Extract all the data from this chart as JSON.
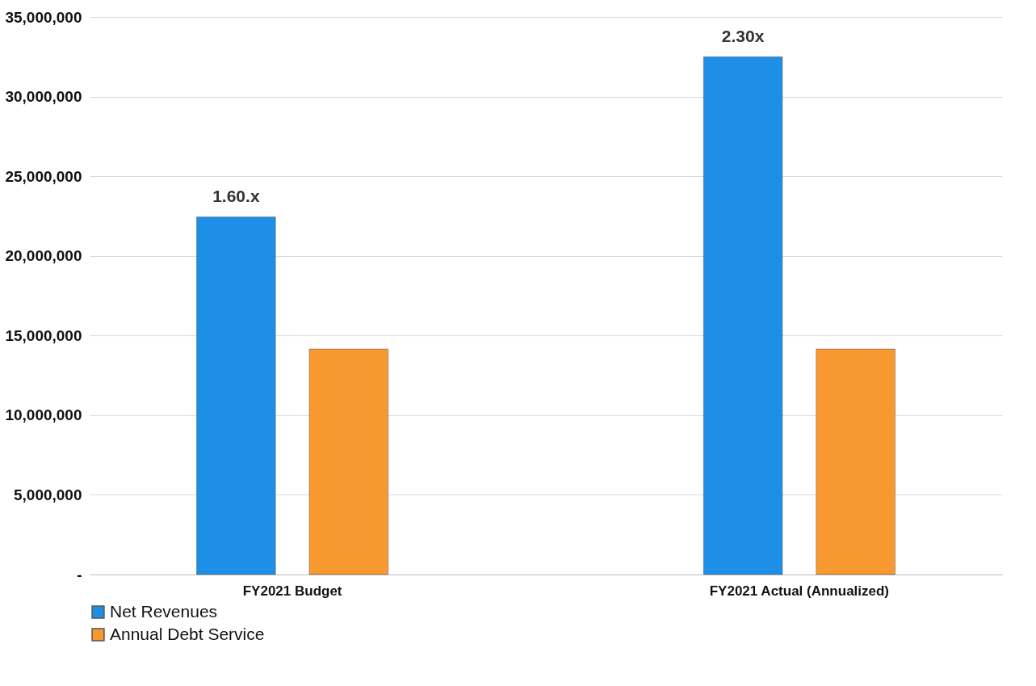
{
  "chart_data": {
    "type": "bar",
    "categories": [
      "FY2021 Budget",
      "FY2021 Actual (Annualized)"
    ],
    "series": [
      {
        "name": "Net Revenues",
        "color": "#1e8fe6",
        "values": [
          22450000,
          32500000
        ]
      },
      {
        "name": "Annual Debt Service",
        "color": "#f7992e",
        "values": [
          14150000,
          14150000
        ]
      }
    ],
    "ylim": [
      0,
      35000000
    ],
    "yticks": [
      {
        "value": 0,
        "label": "-"
      },
      {
        "value": 5000000,
        "label": "5,000,000"
      },
      {
        "value": 10000000,
        "label": "10,000,000"
      },
      {
        "value": 15000000,
        "label": "15,000,000"
      },
      {
        "value": 20000000,
        "label": "20,000,000"
      },
      {
        "value": 25000000,
        "label": "25,000,000"
      },
      {
        "value": 30000000,
        "label": "30,000,000"
      },
      {
        "value": 35000000,
        "label": "35,000,000"
      }
    ],
    "annotations": [
      "1.60.x",
      "2.30x"
    ],
    "grid": "y",
    "legend": "bottom"
  }
}
